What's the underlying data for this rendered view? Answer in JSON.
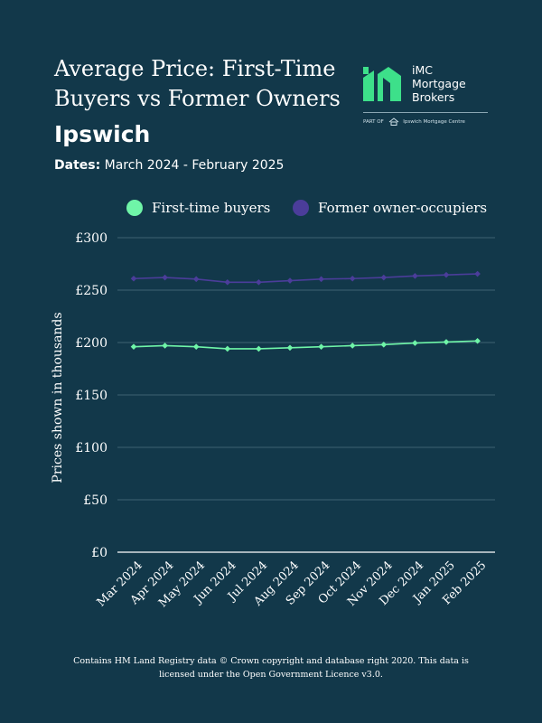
{
  "header": {
    "title": "Average Price: First-Time Buyers vs Former Owners",
    "city": "Ipswich",
    "dates_label": "Dates:",
    "dates_value": "March 2024 - February 2025"
  },
  "logo": {
    "brand_line1": "iMC",
    "brand_line2": "Mortgage",
    "brand_line3": "Brokers",
    "part_of": "PART OF",
    "parent": "Ipswich Mortgage Centre",
    "mark_color": "#3de08a"
  },
  "footer": {
    "text": "Contains HM Land Registry data © Crown copyright and database right 2020. This data is licensed under the Open Government Licence v3.0."
  },
  "chart_data": {
    "type": "line",
    "categories": [
      "Mar 2024",
      "Apr 2024",
      "May 2024",
      "Jun 2024",
      "Jul 2024",
      "Aug 2024",
      "Sep 2024",
      "Oct 2024",
      "Nov 2024",
      "Dec 2024",
      "Jan 2025",
      "Feb 2025"
    ],
    "series": [
      {
        "name": "First-time buyers",
        "color": "#6ff5a8",
        "values": [
          196,
          197,
          196,
          194,
          194,
          195,
          196,
          197,
          198,
          199.5,
          200.5,
          201.5
        ]
      },
      {
        "name": "Former owner-occupiers",
        "color": "#4b3d9a",
        "values": [
          261,
          262,
          260.5,
          257.5,
          257.5,
          259,
          260.5,
          261,
          262,
          263.5,
          264.5,
          265.5
        ]
      }
    ],
    "ylabel": "Prices shown in thousands",
    "yticks": [
      "£0",
      "£50",
      "£100",
      "£150",
      "£200",
      "£250",
      "£300"
    ],
    "ytick_values": [
      0,
      50,
      100,
      150,
      200,
      250,
      300
    ],
    "ylim": [
      0,
      300
    ],
    "grid": true,
    "legend_position": "top",
    "gridline_color": "#4f7182",
    "axis_color": "#ffffff"
  }
}
